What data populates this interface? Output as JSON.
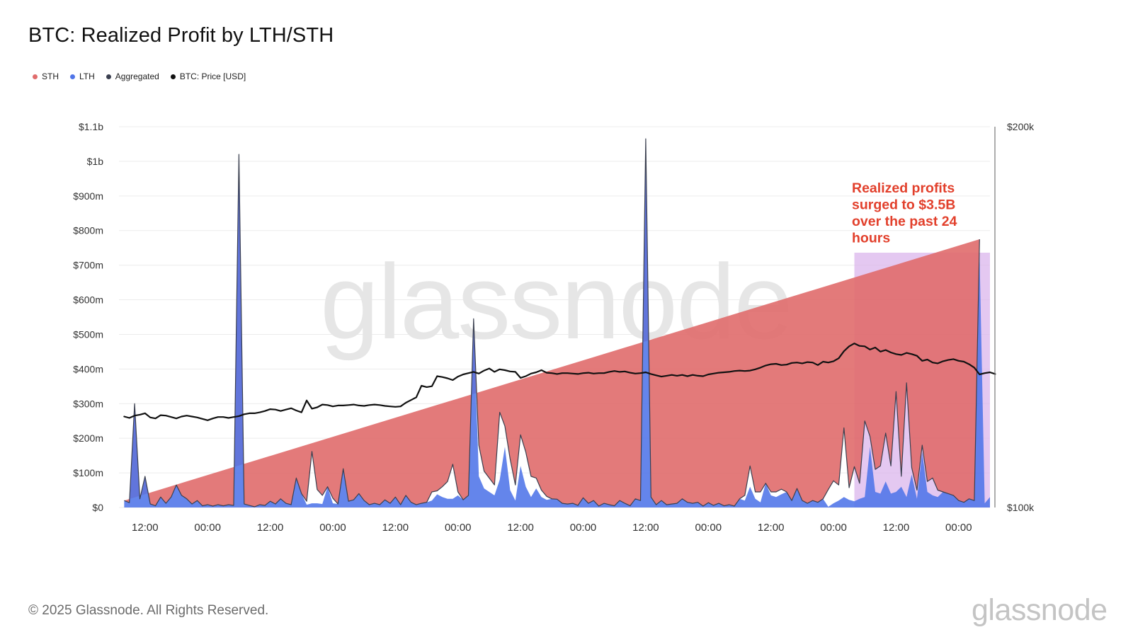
{
  "header": {
    "title": "BTC: Realized Profit by LTH/STH"
  },
  "legend": {
    "items": [
      {
        "label": "STH",
        "color": "#e06c6c"
      },
      {
        "label": "LTH",
        "color": "#4f74e8"
      },
      {
        "label": "Aggregated",
        "color": "#3a3f4f"
      },
      {
        "label": "BTC: Price [USD]",
        "color": "#111111"
      }
    ]
  },
  "watermark": {
    "text": "glassnode"
  },
  "footer": {
    "copyright": "© 2025 Glassnode. All Rights Reserved.",
    "brand": "glassnode"
  },
  "annotation": {
    "lines": [
      "Realized profits",
      "surged to $3.5B",
      "over the past 24",
      "hours"
    ],
    "color": "#e2402c",
    "highlight_color": "#d9b3ec"
  },
  "chart_data": {
    "type": "area",
    "title": "BTC: Realized Profit by LTH/STH",
    "x_step_hours": 1,
    "x_ticks": [
      {
        "hour": 4,
        "label": "12:00"
      },
      {
        "hour": 16,
        "label": "00:00"
      },
      {
        "hour": 28,
        "label": "12:00"
      },
      {
        "hour": 40,
        "label": "00:00"
      },
      {
        "hour": 52,
        "label": "12:00"
      },
      {
        "hour": 64,
        "label": "00:00"
      },
      {
        "hour": 76,
        "label": "12:00"
      },
      {
        "hour": 88,
        "label": "00:00"
      },
      {
        "hour": 100,
        "label": "12:00"
      },
      {
        "hour": 112,
        "label": "00:00"
      },
      {
        "hour": 124,
        "label": "12:00"
      },
      {
        "hour": 136,
        "label": "00:00"
      },
      {
        "hour": 148,
        "label": "12:00"
      },
      {
        "hour": 160,
        "label": "00:00"
      }
    ],
    "x_range": [
      -1,
      166
    ],
    "y_left": {
      "range": [
        0,
        1100
      ],
      "ticks": [
        {
          "value": 0,
          "label": "$0"
        },
        {
          "value": 100,
          "label": "$100m"
        },
        {
          "value": 200,
          "label": "$200m"
        },
        {
          "value": 300,
          "label": "$300m"
        },
        {
          "value": 400,
          "label": "$400m"
        },
        {
          "value": 500,
          "label": "$500m"
        },
        {
          "value": 600,
          "label": "$600m"
        },
        {
          "value": 700,
          "label": "$700m"
        },
        {
          "value": 800,
          "label": "$800m"
        },
        {
          "value": 900,
          "label": "$900m"
        },
        {
          "value": 1000,
          "label": "$1b"
        },
        {
          "value": 1100,
          "label": "$1.1b"
        }
      ]
    },
    "y_right": {
      "scale": "log",
      "range": [
        100000,
        200000
      ],
      "ticks": [
        {
          "value": 100000,
          "label": "$100k"
        },
        {
          "value": 200000,
          "label": "$200k"
        }
      ]
    },
    "grid": true,
    "legend_position": "top-left",
    "highlight_range": [
      140,
      166
    ],
    "series": [
      {
        "name": "LTH",
        "color": "#4f74e8",
        "values": [
          20,
          14,
          300,
          25,
          90,
          10,
          5,
          30,
          12,
          30,
          65,
          35,
          25,
          10,
          20,
          5,
          8,
          4,
          8,
          5,
          8,
          6,
          1020,
          10,
          6,
          2,
          8,
          6,
          18,
          10,
          25,
          12,
          8,
          85,
          40,
          8,
          12,
          12,
          10,
          60,
          12,
          10,
          112,
          18,
          22,
          40,
          20,
          8,
          12,
          8,
          22,
          12,
          30,
          8,
          35,
          15,
          8,
          12,
          15,
          20,
          38,
          30,
          25,
          25,
          35,
          22,
          35,
          545,
          90,
          55,
          45,
          35,
          80,
          175,
          50,
          20,
          120,
          60,
          30,
          55,
          30,
          22,
          25,
          24,
          12,
          10,
          12,
          6,
          28,
          12,
          20,
          4,
          12,
          8,
          5,
          20,
          12,
          5,
          25,
          20,
          1065,
          30,
          8,
          20,
          8,
          10,
          12,
          25,
          15,
          12,
          15,
          4,
          14,
          6,
          12,
          5,
          8,
          4,
          25,
          20,
          60,
          25,
          15,
          70,
          35,
          30,
          38,
          45,
          20,
          55,
          20,
          12,
          20,
          15,
          25,
          2,
          12,
          20,
          30,
          22,
          18,
          25,
          30,
          175,
          45,
          40,
          75,
          40,
          45,
          60,
          30,
          95,
          25,
          160,
          45,
          35,
          30,
          45,
          40,
          35,
          20,
          15,
          25,
          20,
          730,
          12,
          30
        ]
      },
      {
        "name": "STH",
        "color": "#e06c6c",
        "values": [
          0,
          0,
          0,
          0,
          0,
          0,
          0,
          0,
          0,
          0,
          0,
          0,
          0,
          0,
          0,
          0,
          0,
          0,
          0,
          0,
          0,
          0,
          0,
          0,
          0,
          0,
          0,
          0,
          0,
          0,
          0,
          0,
          0,
          0,
          0,
          10,
          150,
          40,
          25,
          0,
          15,
          0,
          0,
          0,
          0,
          0,
          0,
          0,
          0,
          0,
          0,
          0,
          0,
          0,
          0,
          0,
          0,
          0,
          0,
          25,
          10,
          30,
          50,
          100,
          10,
          0,
          0,
          0,
          90,
          50,
          40,
          30,
          195,
          60,
          90,
          45,
          90,
          100,
          60,
          30,
          20,
          10,
          0,
          0,
          0,
          0,
          0,
          0,
          0,
          0,
          0,
          0,
          0,
          0,
          0,
          0,
          0,
          0,
          0,
          0,
          0,
          0,
          0,
          0,
          0,
          0,
          0,
          0,
          0,
          0,
          0,
          0,
          0,
          0,
          0,
          0,
          0,
          0,
          0,
          15,
          60,
          20,
          30,
          0,
          10,
          15,
          15,
          0,
          0,
          0,
          0,
          0,
          0,
          0,
          0,
          50,
          65,
          45,
          200,
          35,
          100,
          45,
          220,
          30,
          65,
          80,
          140,
          80,
          290,
          30,
          330,
          20,
          25,
          20,
          30,
          50,
          20,
          0,
          0,
          0,
          0,
          0,
          0,
          0,
          45
        ]
      },
      {
        "name": "BTC: Price [USD]",
        "color": "#111111",
        "values": [
          118000,
          117700,
          118200,
          118400,
          118700,
          117800,
          117600,
          118300,
          118200,
          117900,
          117600,
          118000,
          118200,
          118000,
          117800,
          117500,
          117200,
          117600,
          117900,
          117900,
          117700,
          117900,
          118100,
          118500,
          118700,
          118700,
          118900,
          119200,
          119600,
          119500,
          119200,
          119500,
          119800,
          119300,
          118900,
          121500,
          119700,
          120000,
          120600,
          120500,
          120200,
          120400,
          120400,
          120500,
          120600,
          120400,
          120300,
          120500,
          120600,
          120500,
          120300,
          120200,
          120100,
          120200,
          121000,
          121600,
          122200,
          124800,
          124500,
          124700,
          127000,
          126800,
          126500,
          126100,
          126900,
          127400,
          127700,
          128000,
          127600,
          128300,
          128800,
          128000,
          128600,
          128400,
          128100,
          128000,
          126600,
          127000,
          127600,
          127900,
          128400,
          127800,
          127700,
          127500,
          127700,
          127700,
          127600,
          127500,
          127700,
          127800,
          127600,
          127700,
          127700,
          128000,
          128200,
          128000,
          128100,
          127800,
          127600,
          127700,
          127900,
          127500,
          127200,
          126900,
          127100,
          127300,
          127100,
          127300,
          127000,
          127300,
          127100,
          127000,
          127400,
          127600,
          127800,
          127900,
          128000,
          128200,
          128300,
          128200,
          128300,
          128600,
          129000,
          129500,
          129800,
          129900,
          129600,
          129700,
          130100,
          130200,
          130000,
          130300,
          130200,
          129600,
          130400,
          130200,
          130500,
          131200,
          132900,
          134100,
          134800,
          134200,
          134100,
          133300,
          133800,
          132800,
          133200,
          132600,
          132200,
          132000,
          132500,
          132200,
          131800,
          130600,
          130900,
          130200,
          130000,
          130500,
          130800,
          131000,
          130600,
          130400,
          129800,
          129000,
          127400,
          127700,
          127900,
          127500
        ]
      }
    ]
  }
}
